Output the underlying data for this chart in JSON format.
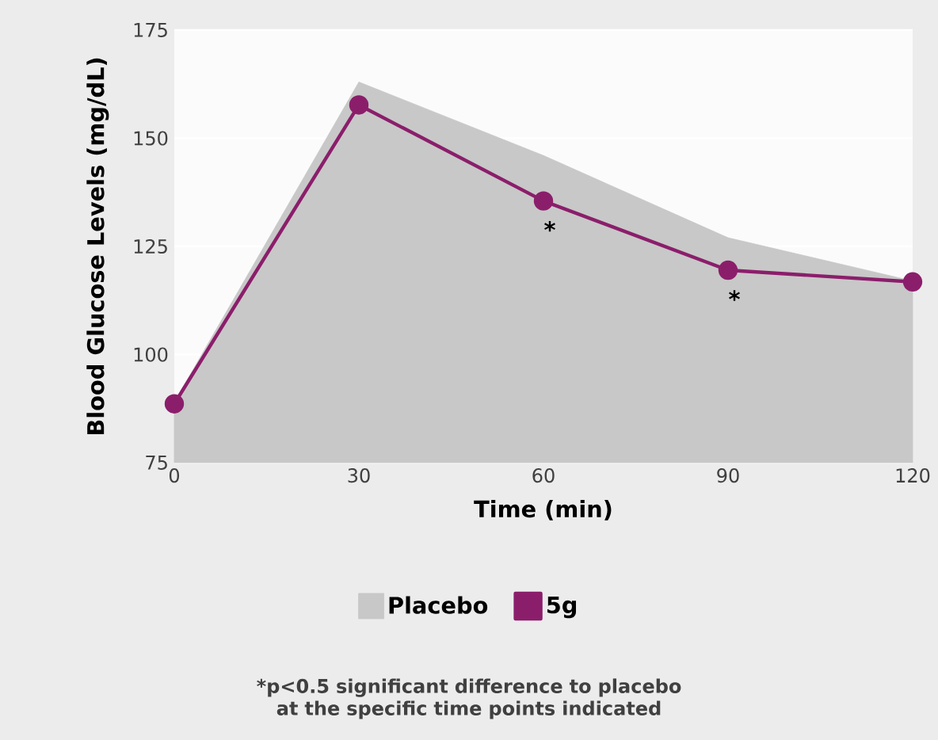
{
  "chart_data": {
    "type": "line",
    "xlabel": "Time (min)",
    "ylabel": "Blood Glucose Levels (mg/dL)",
    "x": [
      0,
      30,
      60,
      90,
      120
    ],
    "series": [
      {
        "name": "Placebo",
        "type": "area",
        "color": "#c8c8c8",
        "values": [
          89,
          163,
          146,
          127,
          117
        ]
      },
      {
        "name": "5g",
        "color": "#8b1e6b",
        "marker": "circle",
        "values": [
          88.6,
          157.7,
          135.5,
          119.5,
          116.8
        ]
      }
    ],
    "xlim": [
      0,
      120
    ],
    "ylim": [
      75,
      175
    ],
    "xticks": [
      0,
      30,
      60,
      90,
      120
    ],
    "yticks": [
      75,
      100,
      125,
      150,
      175
    ],
    "grid": "y",
    "legend": "bottom",
    "annotations": [
      {
        "text": "*",
        "x": 60,
        "y": 135.5
      },
      {
        "text": "*",
        "x": 90,
        "y": 119.5
      },
      "*p<0.5 significant difference to placebo at the specific time points indicated"
    ]
  }
}
